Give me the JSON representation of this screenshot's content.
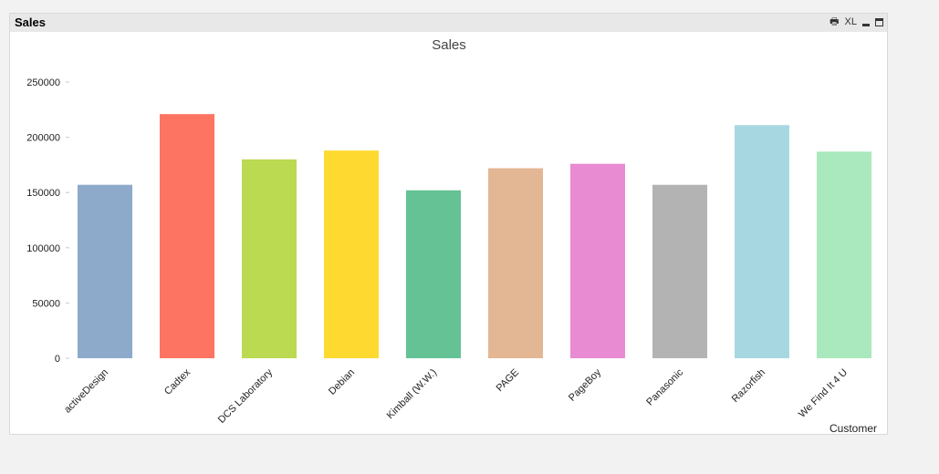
{
  "window": {
    "caption_title": "Sales",
    "caption_icons": [
      "print-icon",
      "excel-export-icon",
      "minimize-icon",
      "maximize-icon"
    ],
    "excel_label": "XL"
  },
  "chart_data": {
    "type": "bar",
    "title": "Sales",
    "xlabel": "Customer",
    "ylabel": "",
    "categories": [
      "activeDesign",
      "Cadtex",
      "DCS Laboratory",
      "Debian",
      "Kimball (W.W.)",
      "PAGE",
      "PageBoy",
      "Panasonic",
      "Razorfish",
      "We Find It 4 U"
    ],
    "values": [
      157000,
      221000,
      180000,
      188000,
      152000,
      172000,
      176000,
      157000,
      211000,
      187000
    ],
    "colors": [
      "#8eaacb",
      "#fe7462",
      "#bbd951",
      "#fed930",
      "#65c294",
      "#e3b694",
      "#e88bd2",
      "#b3b3b3",
      "#a7d8e2",
      "#aae8bd"
    ],
    "ylim": [
      0,
      250000
    ],
    "yticks": [
      "0",
      "50000",
      "100000",
      "150000",
      "200000",
      "250000"
    ],
    "grid": false,
    "legend": "none"
  }
}
